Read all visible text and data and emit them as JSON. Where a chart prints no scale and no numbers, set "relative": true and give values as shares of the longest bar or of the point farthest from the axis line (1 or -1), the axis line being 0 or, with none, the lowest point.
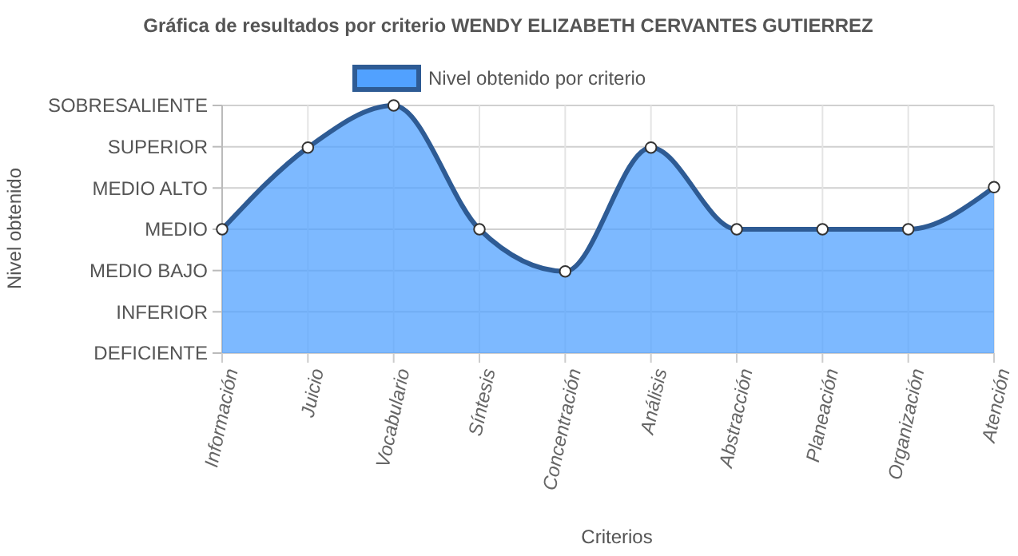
{
  "chart_data": {
    "type": "area",
    "title": "Gráfica de resultados por criterio WENDY ELIZABETH CERVANTES GUTIERREZ",
    "xlabel": "Criterios",
    "categories": [
      "Información",
      "Juicio",
      "Vocabulario",
      "Síntesis",
      "Concentración",
      "Análisis",
      "Abstracción",
      "Planeación",
      "Organización",
      "Atención"
    ],
    "series": [
      {
        "name": "Nivel obtenido por criterio",
        "color": "#2e5b94",
        "values": [
          0.5,
          0.83,
          1,
          0.5,
          0.33,
          0.83,
          0.5,
          0.5,
          0.5,
          0.67
        ]
      }
    ],
    "relative": true,
    "annotations": [
      "Nivel obtenido",
      "DEFICIENTE",
      "INFERIOR",
      "MEDIO BAJO",
      "MEDIO",
      "MEDIO ALTO",
      "SUPERIOR",
      "SOBRESALIENTE"
    ],
    "grid": true,
    "legend": "top",
    "marker": "circle",
    "line_style": "solid"
  }
}
